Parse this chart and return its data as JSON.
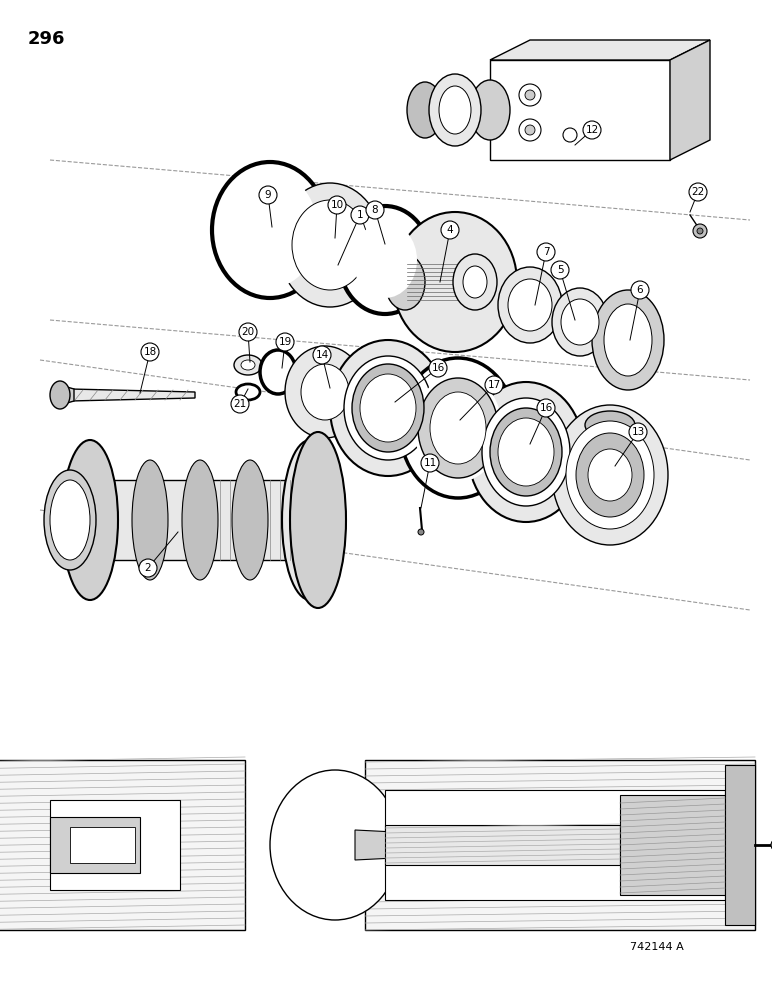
{
  "page_number": "296",
  "figure_number": "742144 A",
  "bg": "#ffffff",
  "lc": "#000000",
  "gray1": "#e8e8e8",
  "gray2": "#d0d0d0",
  "gray3": "#c0c0c0",
  "gray4": "#a0a0a0",
  "gray5": "#f5f5f5",
  "dashed_line": "#999999"
}
